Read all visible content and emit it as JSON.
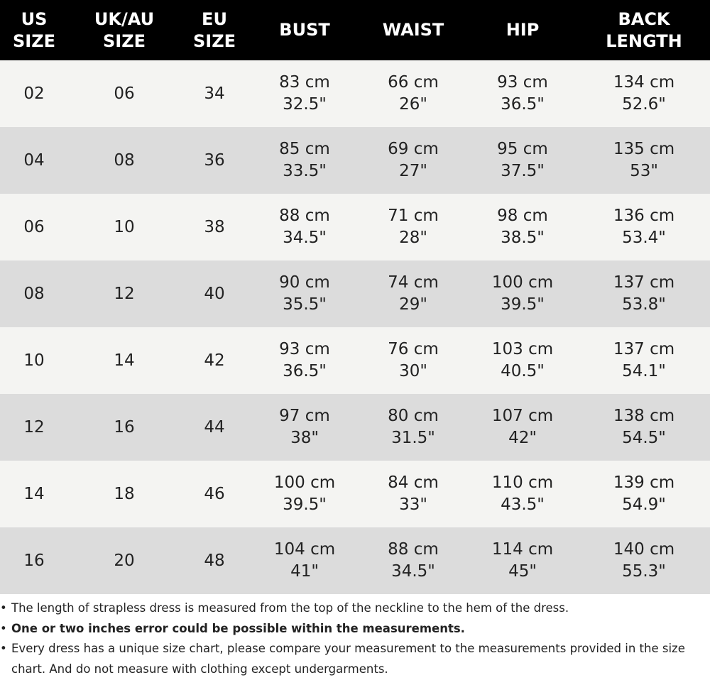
{
  "table": {
    "headers": [
      [
        "US",
        "SIZE"
      ],
      [
        "UK/AU",
        "SIZE"
      ],
      [
        "EU",
        "SIZE"
      ],
      [
        "BUST"
      ],
      [
        "WAIST"
      ],
      [
        "HIP"
      ],
      [
        "BACK",
        "LENGTH"
      ]
    ],
    "rows": [
      [
        "02",
        "06",
        "34",
        [
          "83 cm",
          "32.5\""
        ],
        [
          "66 cm",
          "26\""
        ],
        [
          "93 cm",
          "36.5\""
        ],
        [
          "134 cm",
          "52.6\""
        ]
      ],
      [
        "04",
        "08",
        "36",
        [
          "85 cm",
          "33.5\""
        ],
        [
          "69 cm",
          "27\""
        ],
        [
          "95 cm",
          "37.5\""
        ],
        [
          "135 cm",
          "53\""
        ]
      ],
      [
        "06",
        "10",
        "38",
        [
          "88 cm",
          "34.5\""
        ],
        [
          "71 cm",
          "28\""
        ],
        [
          "98 cm",
          "38.5\""
        ],
        [
          "136 cm",
          "53.4\""
        ]
      ],
      [
        "08",
        "12",
        "40",
        [
          "90 cm",
          "35.5\""
        ],
        [
          "74 cm",
          "29\""
        ],
        [
          "100 cm",
          "39.5\""
        ],
        [
          "137 cm",
          "53.8\""
        ]
      ],
      [
        "10",
        "14",
        "42",
        [
          "93 cm",
          "36.5\""
        ],
        [
          "76 cm",
          "30\""
        ],
        [
          "103 cm",
          "40.5\""
        ],
        [
          "137 cm",
          "54.1\""
        ]
      ],
      [
        "12",
        "16",
        "44",
        [
          "97 cm",
          "38\""
        ],
        [
          "80 cm",
          "31.5\""
        ],
        [
          "107 cm",
          "42\""
        ],
        [
          "138 cm",
          "54.5\""
        ]
      ],
      [
        "14",
        "18",
        "46",
        [
          "100 cm",
          "39.5\""
        ],
        [
          "84 cm",
          "33\""
        ],
        [
          "110 cm",
          "43.5\""
        ],
        [
          "139 cm",
          "54.9\""
        ]
      ],
      [
        "16",
        "20",
        "48",
        [
          "104 cm",
          "41\""
        ],
        [
          "88 cm",
          "34.5\""
        ],
        [
          "114 cm",
          "45\""
        ],
        [
          "140 cm",
          "55.3\""
        ]
      ]
    ]
  },
  "notes": [
    {
      "text": "The length of strapless dress is measured from the top of the neckline to the hem of the dress.",
      "bold": false
    },
    {
      "text": "One or two inches error could be possible within the measurements.",
      "bold": true
    },
    {
      "text": "Every dress has a unique size chart, please compare your measurement to the measurements provided in the size chart. And do not measure with clothing except undergarments.",
      "bold": false
    }
  ]
}
